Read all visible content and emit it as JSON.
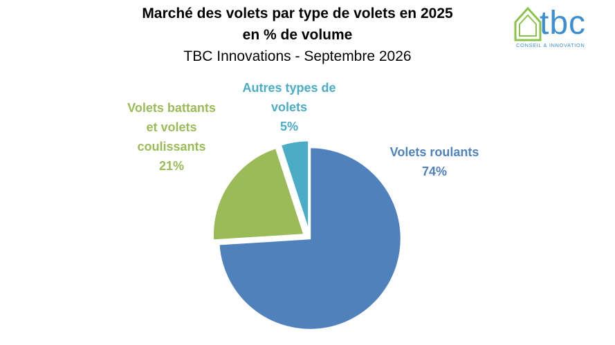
{
  "header": {
    "title_line1": "Marché des volets par type de volets en 2025",
    "title_line2": "en % de volume",
    "subtitle": "TBC Innovations - Septembre 2026"
  },
  "logo": {
    "text": "tbc",
    "tagline": "CONSEIL & INNOVATION",
    "icon": "house-icon",
    "color": "#3d8fd1",
    "house_color": "#8bc34a"
  },
  "chart_data": {
    "type": "pie",
    "title": "Marché des volets par type de volets en 2025 en % de volume",
    "subtitle": "TBC Innovations - Septembre 2026",
    "slices": [
      {
        "label_lines": [
          "Volets roulants"
        ],
        "value": 74,
        "value_label": "74%",
        "color": "#4f81bd",
        "label_color": "#4f81bd",
        "exploded": false
      },
      {
        "label_lines": [
          "Volets battants",
          "et volets",
          "coulissants"
        ],
        "value": 21,
        "value_label": "21%",
        "color": "#9bbb59",
        "label_color": "#9bbb59",
        "exploded": true
      },
      {
        "label_lines": [
          "Autres types de",
          "volets"
        ],
        "value": 5,
        "value_label": "5%",
        "color": "#4bacc6",
        "label_color": "#4bacc6",
        "exploded": true
      }
    ],
    "legend": "none",
    "start": "top",
    "direction": "clockwise"
  }
}
